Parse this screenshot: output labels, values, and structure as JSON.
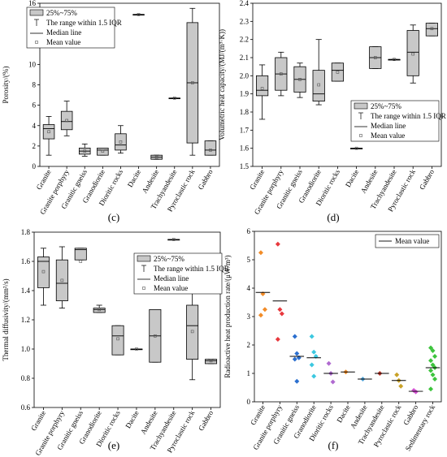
{
  "chart_data": [
    {
      "panel": "(c)",
      "type": "box",
      "ylabel": "Porosity/(%)",
      "ylim": [
        0,
        16
      ],
      "yticks": [
        0,
        2,
        4,
        6,
        8,
        10,
        12,
        14,
        16
      ],
      "categories": [
        "Granite",
        "Granite porphyry",
        "Granitic gneiss",
        "Granodiorite",
        "Dioritic rocks",
        "Dacite",
        "Andesite",
        "Trachyandesite",
        "Pyroclastic rock",
        "Gabbro"
      ],
      "boxes": [
        {
          "q1": 2.7,
          "median": 3.7,
          "q3": 4.1,
          "whisker_low": 1.1,
          "whisker_high": 4.9,
          "mean": 3.4
        },
        {
          "q1": 3.6,
          "median": 4.4,
          "q3": 5.4,
          "whisker_low": 3.0,
          "whisker_high": 6.4,
          "mean": 4.5
        },
        {
          "q1": 1.2,
          "median": 1.5,
          "q3": 1.8,
          "whisker_low": 1.0,
          "whisker_high": 2.2,
          "mean": 1.5
        },
        {
          "q1": 1.1,
          "median": 1.6,
          "q3": 1.8,
          "whisker_low": 1.1,
          "whisker_high": 1.8,
          "mean": 1.5
        },
        {
          "q1": 1.6,
          "median": 2.1,
          "q3": 3.2,
          "whisker_low": 1.3,
          "whisker_high": 4.0,
          "mean": 2.4
        },
        {
          "q1": 14.9,
          "median": 14.9,
          "q3": 14.9,
          "whisker_low": 14.9,
          "whisker_high": 14.9,
          "mean": 14.9
        },
        {
          "q1": 0.7,
          "median": 0.9,
          "q3": 1.1,
          "whisker_low": 0.7,
          "whisker_high": 1.1,
          "mean": 0.9
        },
        {
          "q1": 6.7,
          "median": 6.7,
          "q3": 6.7,
          "whisker_low": 6.7,
          "whisker_high": 6.7,
          "mean": 6.7
        },
        {
          "q1": 2.3,
          "median": 8.2,
          "q3": 14.1,
          "whisker_low": 1.1,
          "whisker_high": 15.5,
          "mean": 8.2
        },
        {
          "q1": 1.1,
          "median": 1.6,
          "q3": 2.5,
          "whisker_low": 1.1,
          "whisker_high": 2.5,
          "mean": 1.6
        }
      ],
      "legend": {
        "position": "top-left"
      }
    },
    {
      "panel": "(d)",
      "type": "box",
      "ylabel": "Volumetric heat capacity/(MJ/(m³·K))",
      "ylim": [
        1.5,
        2.4
      ],
      "yticks": [
        1.5,
        1.6,
        1.7,
        1.8,
        1.9,
        2.0,
        2.1,
        2.2,
        2.3,
        2.4
      ],
      "categories": [
        "Granite",
        "Granite porphyry",
        "Granitic gneiss",
        "Granodiorite",
        "Dioritic rocks",
        "Dacite",
        "Andesite",
        "Trachyandesite",
        "Pyroclastic rock",
        "Gabbro"
      ],
      "boxes": [
        {
          "q1": 1.89,
          "median": 1.92,
          "q3": 2.0,
          "whisker_low": 1.76,
          "whisker_high": 2.06,
          "mean": 1.93
        },
        {
          "q1": 1.92,
          "median": 2.01,
          "q3": 2.1,
          "whisker_low": 1.89,
          "whisker_high": 2.13,
          "mean": 2.01
        },
        {
          "q1": 1.91,
          "median": 1.98,
          "q3": 2.05,
          "whisker_low": 1.88,
          "whisker_high": 2.07,
          "mean": 1.98
        },
        {
          "q1": 1.86,
          "median": 1.9,
          "q3": 2.03,
          "whisker_low": 1.84,
          "whisker_high": 2.2,
          "mean": 1.95
        },
        {
          "q1": 1.97,
          "median": 2.03,
          "q3": 2.07,
          "whisker_low": 1.97,
          "whisker_high": 2.07,
          "mean": 2.02
        },
        {
          "q1": 1.6,
          "median": 1.6,
          "q3": 1.6,
          "whisker_low": 1.6,
          "whisker_high": 1.6,
          "mean": 1.6
        },
        {
          "q1": 2.04,
          "median": 2.1,
          "q3": 2.16,
          "whisker_low": 2.04,
          "whisker_high": 2.16,
          "mean": 2.1
        },
        {
          "q1": 2.09,
          "median": 2.09,
          "q3": 2.09,
          "whisker_low": 2.09,
          "whisker_high": 2.09,
          "mean": 2.09
        },
        {
          "q1": 2.0,
          "median": 2.13,
          "q3": 2.25,
          "whisker_low": 1.96,
          "whisker_high": 2.28,
          "mean": 2.12
        },
        {
          "q1": 2.22,
          "median": 2.26,
          "q3": 2.29,
          "whisker_low": 2.22,
          "whisker_high": 2.29,
          "mean": 2.26
        }
      ],
      "legend": {
        "position": "middle-right"
      }
    },
    {
      "panel": "(e)",
      "type": "box",
      "ylabel": "Thermal diffusivity/(mm²/s)",
      "ylim": [
        0.6,
        1.8
      ],
      "yticks": [
        0.6,
        0.8,
        1.0,
        1.2,
        1.4,
        1.6,
        1.8
      ],
      "categories": [
        "Granite",
        "Granite porphyry",
        "Granitic gneiss",
        "Granodiorite",
        "Dioritic rocks",
        "Dacite",
        "Andesite",
        "Trachyandesite",
        "Pyroclastic rock",
        "Gabbro"
      ],
      "boxes": [
        {
          "q1": 1.42,
          "median": 1.6,
          "q3": 1.63,
          "whisker_low": 1.3,
          "whisker_high": 1.69,
          "mean": 1.53
        },
        {
          "q1": 1.33,
          "median": 1.45,
          "q3": 1.61,
          "whisker_low": 1.28,
          "whisker_high": 1.7,
          "mean": 1.47
        },
        {
          "q1": 1.61,
          "median": 1.68,
          "q3": 1.69,
          "whisker_low": 1.61,
          "whisker_high": 1.69,
          "mean": 1.6
        },
        {
          "q1": 1.25,
          "median": 1.27,
          "q3": 1.28,
          "whisker_low": 1.25,
          "whisker_high": 1.3,
          "mean": 1.27
        },
        {
          "q1": 0.96,
          "median": 1.09,
          "q3": 1.16,
          "whisker_low": 0.96,
          "whisker_high": 1.16,
          "mean": 1.07
        },
        {
          "q1": 1.0,
          "median": 1.0,
          "q3": 1.0,
          "whisker_low": 1.0,
          "whisker_high": 1.0,
          "mean": 1.0
        },
        {
          "q1": 0.91,
          "median": 1.09,
          "q3": 1.27,
          "whisker_low": 0.91,
          "whisker_high": 1.27,
          "mean": 1.09
        },
        {
          "q1": 1.75,
          "median": 1.75,
          "q3": 1.75,
          "whisker_low": 1.75,
          "whisker_high": 1.75,
          "mean": 1.75
        },
        {
          "q1": 0.93,
          "median": 1.16,
          "q3": 1.3,
          "whisker_low": 0.79,
          "whisker_high": 1.38,
          "mean": 1.12
        },
        {
          "q1": 0.9,
          "median": 0.92,
          "q3": 0.93,
          "whisker_low": 0.9,
          "whisker_high": 0.93,
          "mean": 0.92
        }
      ],
      "legend": {
        "position": "top-right"
      }
    },
    {
      "panel": "(f)",
      "type": "scatter",
      "ylabel": "Radioactive heat production rate/(μW/m³)",
      "ylim": [
        0,
        6
      ],
      "yticks": [
        0,
        1,
        2,
        3,
        4,
        5,
        6
      ],
      "categories": [
        "Granite",
        "Granite porphyry",
        "Granitic gneiss",
        "Granodiorite",
        "Dioritic rocks",
        "Dacite",
        "Andesite",
        "Trachyandesite",
        "Pyroclastic rock",
        "Gabbro",
        "Sedimentary rock"
      ],
      "series": [
        {
          "color": "#f28c28",
          "values": [
            5.25,
            3.8,
            3.25,
            3.05
          ],
          "mean": 3.85
        },
        {
          "color": "#e8383d",
          "values": [
            5.55,
            3.25,
            3.1,
            2.2
          ],
          "mean": 3.55
        },
        {
          "color": "#2b6fcf",
          "values": [
            2.3,
            1.7,
            1.55,
            1.5,
            0.72
          ],
          "mean": 1.6
        },
        {
          "color": "#3cc8e0",
          "values": [
            2.3,
            1.75,
            1.6,
            1.3,
            0.9
          ],
          "mean": 1.55
        },
        {
          "color": "#b06ad0",
          "values": [
            1.35,
            1.0,
            0.7
          ],
          "mean": 1.0
        },
        {
          "color": "#f28c28",
          "values": [
            1.05
          ],
          "mean": 1.05
        },
        {
          "color": "#4fa3d9",
          "values": [
            0.8
          ],
          "mean": 0.8
        },
        {
          "color": "#c0392b",
          "values": [
            1.0
          ],
          "mean": 1.0
        },
        {
          "color": "#c9a227",
          "values": [
            0.95,
            0.75,
            0.55
          ],
          "mean": 0.75
        },
        {
          "color": "#d14fd1",
          "values": [
            0.4,
            0.35
          ],
          "mean": 0.37
        },
        {
          "color": "#3dc43d",
          "values": [
            1.9,
            1.8,
            1.6,
            1.45,
            1.3,
            1.2,
            1.1,
            0.95,
            0.8,
            0.45
          ],
          "mean": 1.2
        }
      ],
      "legend": {
        "position": "top-right",
        "entries": [
          "Mean value"
        ]
      }
    }
  ],
  "legend_box": {
    "entries": [
      "25%~75%",
      "The range within 1.5 IQR",
      "Median line",
      "Mean value"
    ]
  },
  "colors": {
    "box_fill": "#c8c8c8",
    "axis": "#000000"
  }
}
